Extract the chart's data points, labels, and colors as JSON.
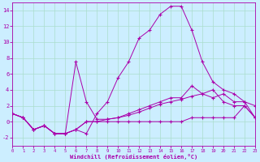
{
  "xlabel": "Windchill (Refroidissement éolien,°C)",
  "background_color": "#cceeff",
  "grid_color": "#aaddcc",
  "line_color": "#aa00aa",
  "xlim": [
    0,
    23
  ],
  "ylim": [
    -3,
    15
  ],
  "xticks": [
    0,
    1,
    2,
    3,
    4,
    5,
    6,
    7,
    8,
    9,
    10,
    11,
    12,
    13,
    14,
    15,
    16,
    17,
    18,
    19,
    20,
    21,
    22,
    23
  ],
  "yticks": [
    -2,
    0,
    2,
    4,
    6,
    8,
    10,
    12,
    14
  ],
  "series": [
    {
      "x": [
        0,
        1,
        2,
        3,
        4,
        5,
        6,
        7,
        8,
        9,
        10,
        11,
        12,
        13,
        14,
        15,
        16,
        17,
        18,
        19,
        20,
        21,
        22,
        23
      ],
      "y": [
        1,
        0.5,
        -1,
        -0.5,
        -1.5,
        -1.5,
        -1,
        -1.5,
        1,
        2.5,
        5.5,
        7.5,
        10.5,
        11.5,
        13.5,
        14.5,
        14.5,
        11.5,
        7.5,
        5,
        4,
        3.5,
        2.5,
        2
      ]
    },
    {
      "x": [
        0,
        1,
        2,
        3,
        4,
        5,
        6,
        7,
        8,
        9,
        10,
        11,
        12,
        13,
        14,
        15,
        16,
        17,
        18,
        19,
        20,
        21,
        22,
        23
      ],
      "y": [
        1,
        0.5,
        -1,
        -0.5,
        -1.5,
        -1.5,
        7.5,
        2.5,
        0.3,
        0.3,
        0.5,
        1.0,
        1.5,
        2.0,
        2.5,
        3.0,
        3.0,
        4.5,
        3.5,
        3.0,
        3.5,
        2.5,
        2.5,
        0.5
      ]
    },
    {
      "x": [
        0,
        1,
        2,
        3,
        4,
        5,
        6,
        7,
        8,
        9,
        10,
        11,
        12,
        13,
        14,
        15,
        16,
        17,
        18,
        19,
        20,
        21,
        22,
        23
      ],
      "y": [
        1,
        0.5,
        -1,
        -0.5,
        -1.5,
        -1.5,
        -1,
        0.0,
        0.0,
        0.3,
        0.5,
        0.8,
        1.2,
        1.7,
        2.2,
        2.5,
        2.8,
        3.2,
        3.5,
        4.0,
        2.5,
        2.0,
        2.0,
        0.5
      ]
    },
    {
      "x": [
        0,
        1,
        2,
        3,
        4,
        5,
        6,
        7,
        8,
        9,
        10,
        11,
        12,
        13,
        14,
        15,
        16,
        17,
        18,
        19,
        20,
        21,
        22,
        23
      ],
      "y": [
        1,
        0.5,
        -1,
        -0.5,
        -1.5,
        -1.5,
        -1,
        0.0,
        0.0,
        0.0,
        0.0,
        0.0,
        0.0,
        0.0,
        0.0,
        0.0,
        0.0,
        0.5,
        0.5,
        0.5,
        0.5,
        0.5,
        2.0,
        0.5
      ]
    }
  ]
}
